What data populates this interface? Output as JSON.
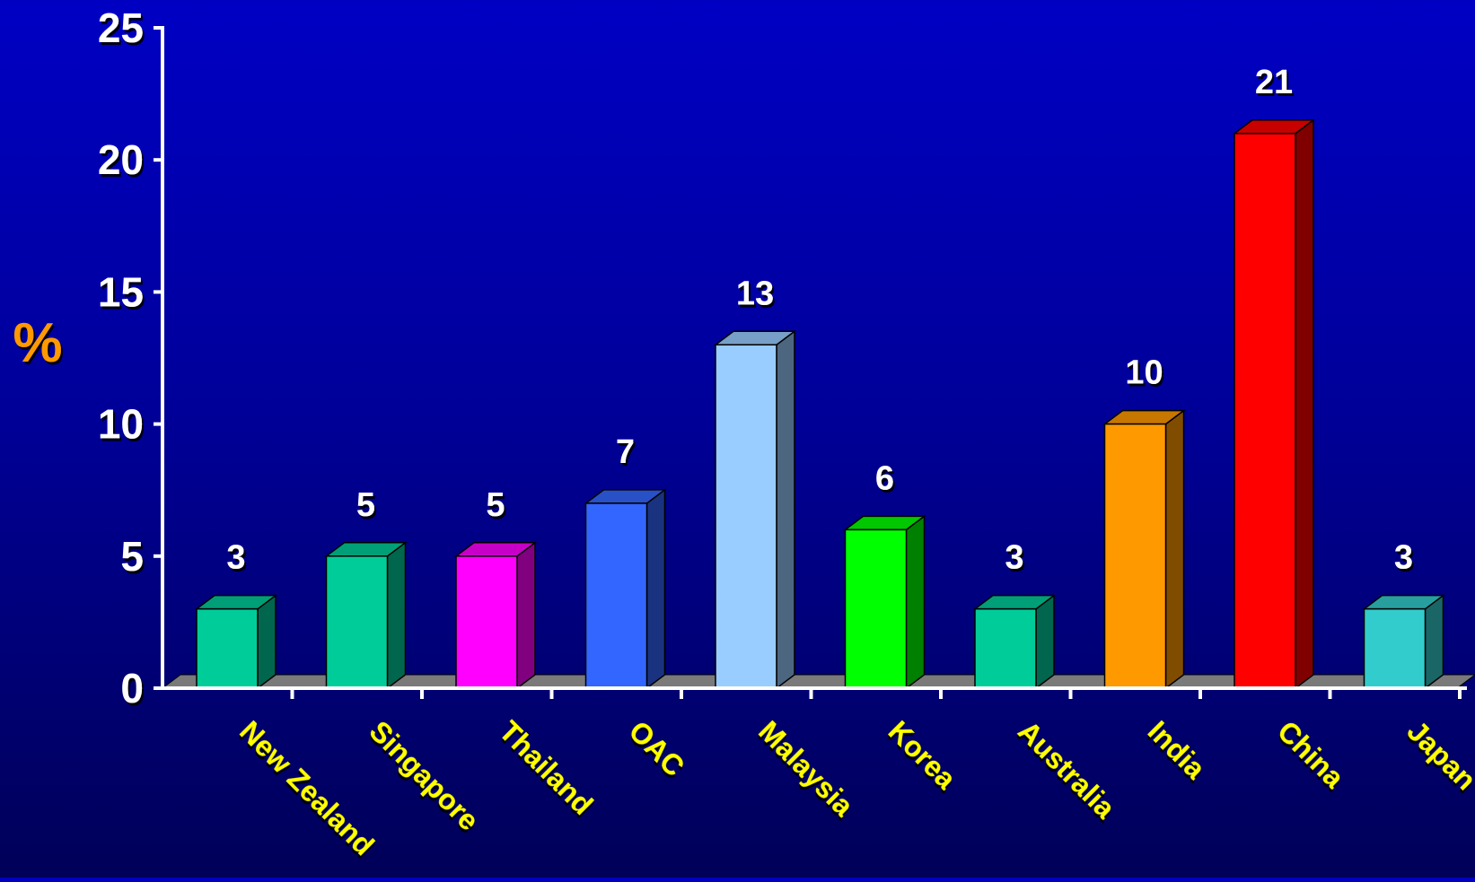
{
  "chart_data": {
    "type": "bar",
    "title": "",
    "xlabel": "",
    "ylabel": "%",
    "ylim": [
      0,
      25
    ],
    "yticks": [
      "0",
      "5",
      "10",
      "15",
      "20",
      "25"
    ],
    "categories": [
      "New Zealand",
      "Singapore",
      "Thailand",
      "OAC",
      "Malaysia",
      "Korea",
      "Australia",
      "India",
      "China",
      "Japan"
    ],
    "values": [
      3,
      5,
      5,
      7,
      13,
      6,
      3,
      10,
      21,
      3
    ],
    "value_labels": [
      "3",
      "5",
      "5",
      "7",
      "13",
      "6",
      "3",
      "10",
      "21",
      "3"
    ],
    "bar_colors": [
      "#00cc99",
      "#00cc99",
      "#ff00ff",
      "#3366ff",
      "#99ccff",
      "#00ff00",
      "#00cc99",
      "#ff9900",
      "#ff0000",
      "#33cccc"
    ],
    "grid": false,
    "legend": "none",
    "style": "3d-bars"
  },
  "colors": {
    "background_top": "#0000c4",
    "background_bottom": "#000058",
    "axis": "#ffffff",
    "value_label": "#ffffff",
    "category_label": "#ffff00",
    "ylabel": "#ff9900",
    "floor": "#7a7a7a"
  }
}
